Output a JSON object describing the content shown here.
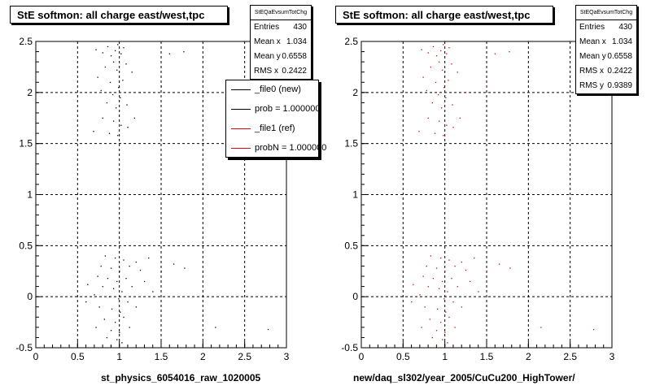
{
  "colors": {
    "black": "#000000",
    "red": "#e00000",
    "grid": "#000000"
  },
  "panels": [
    {
      "title": "StE softmon: all charge east/west,tpc",
      "xlabel": "st_physics_6054016_raw_1020005",
      "stats": {
        "name": "StEQaEvsumTotChg",
        "rows": [
          {
            "label": "Entries",
            "value": "430"
          },
          {
            "label": "Mean x",
            "value": "1.034"
          },
          {
            "label": "Mean y",
            "value": "0.6558"
          },
          {
            "label": "RMS x",
            "value": "0.2422"
          }
        ]
      },
      "legend": [
        {
          "label": "_file0 (new)",
          "color": "#000000"
        },
        {
          "label": "prob = 1.000000",
          "color": "#000000"
        },
        {
          "label": "_file1 (ref)",
          "color": "#e00000"
        },
        {
          "label": "probN = 1.000000",
          "color": "#e00000"
        }
      ]
    },
    {
      "title": "StE softmon: all charge east/west,tpc",
      "xlabel": "new/daq_sl302/year_2005/CuCu200_HighTower/",
      "stats": {
        "name": "StEQaEvsumTotChg",
        "rows": [
          {
            "label": "Entries",
            "value": "430"
          },
          {
            "label": "Mean x",
            "value": "1.034"
          },
          {
            "label": "Mean y",
            "value": "0.6558"
          },
          {
            "label": "RMS x",
            "value": "0.2422"
          },
          {
            "label": "RMS y",
            "value": "0.9389"
          }
        ]
      }
    }
  ],
  "chart_data": [
    {
      "type": "scatter",
      "title": "StE softmon: all charge east/west,tpc",
      "xlabel": "st_physics_6054016_raw_1020005",
      "ylabel": "",
      "xlim": [
        0,
        3
      ],
      "ylim": [
        -0.5,
        2.5
      ],
      "xticks": [
        "0",
        "0.5",
        "1",
        "1.5",
        "2",
        "2.5",
        "3"
      ],
      "yticks": [
        "-0.5",
        "0",
        "0.5",
        "1",
        "1.5",
        "2",
        "2.5"
      ],
      "grid": true,
      "legend_position": "top-right",
      "series": [
        {
          "name": "_file0 (new)",
          "color": "#000000",
          "points": [
            [
              0.72,
              2.42
            ],
            [
              0.8,
              2.39
            ],
            [
              0.86,
              2.45
            ],
            [
              0.9,
              2.36
            ],
            [
              0.95,
              2.41
            ],
            [
              0.98,
              2.47
            ],
            [
              1.02,
              2.38
            ],
            [
              1.05,
              2.44
            ],
            [
              0.93,
              2.3
            ],
            [
              0.83,
              2.25
            ],
            [
              0.97,
              2.22
            ],
            [
              1.08,
              2.28
            ],
            [
              0.74,
              2.15
            ],
            [
              0.89,
              2.1
            ],
            [
              0.99,
              2.05
            ],
            [
              1.04,
              2.12
            ],
            [
              1.15,
              2.2
            ],
            [
              0.78,
              2.02
            ],
            [
              0.92,
              1.98
            ],
            [
              1.01,
              1.95
            ],
            [
              0.85,
              1.9
            ],
            [
              0.96,
              1.85
            ],
            [
              1.09,
              1.88
            ],
            [
              1.25,
              2.0
            ],
            [
              1.18,
              1.75
            ],
            [
              0.8,
              1.75
            ],
            [
              0.93,
              1.72
            ],
            [
              1.02,
              1.68
            ],
            [
              0.69,
              1.62
            ],
            [
              0.88,
              1.6
            ],
            [
              0.98,
              1.58
            ],
            [
              1.1,
              1.66
            ],
            [
              1.5,
              2.06
            ],
            [
              1.6,
              2.38
            ],
            [
              1.77,
              2.4
            ],
            [
              0.83,
              0.4
            ],
            [
              0.95,
              0.38
            ],
            [
              1.05,
              0.36
            ],
            [
              1.2,
              0.34
            ],
            [
              1.35,
              0.38
            ],
            [
              0.78,
              0.3
            ],
            [
              0.9,
              0.28
            ],
            [
              1.0,
              0.25
            ],
            [
              1.12,
              0.3
            ],
            [
              1.25,
              0.26
            ],
            [
              0.74,
              0.2
            ],
            [
              0.86,
              0.18
            ],
            [
              0.97,
              0.15
            ],
            [
              1.08,
              0.18
            ],
            [
              1.3,
              0.15
            ],
            [
              0.8,
              0.1
            ],
            [
              0.93,
              0.08
            ],
            [
              1.03,
              0.05
            ],
            [
              1.15,
              0.1
            ],
            [
              0.7,
              0.02
            ],
            [
              0.88,
              0.0
            ],
            [
              0.99,
              -0.02
            ],
            [
              1.1,
              -0.05
            ],
            [
              1.4,
              0.05
            ],
            [
              0.76,
              -0.1
            ],
            [
              0.91,
              -0.12
            ],
            [
              1.01,
              -0.15
            ],
            [
              1.2,
              -0.1
            ],
            [
              0.82,
              -0.22
            ],
            [
              0.95,
              -0.25
            ],
            [
              1.05,
              -0.2
            ],
            [
              0.72,
              -0.3
            ],
            [
              0.9,
              -0.33
            ],
            [
              1.0,
              -0.35
            ],
            [
              1.12,
              -0.3
            ],
            [
              0.85,
              -0.4
            ],
            [
              0.97,
              -0.42
            ],
            [
              1.03,
              -0.45
            ],
            [
              0.9,
              -0.48
            ],
            [
              1.5,
              0.25
            ],
            [
              1.65,
              0.32
            ],
            [
              1.78,
              0.28
            ],
            [
              2.15,
              -0.3
            ],
            [
              2.78,
              -0.32
            ],
            [
              0.62,
              0.12
            ],
            [
              0.6,
              -0.05
            ]
          ]
        }
      ]
    },
    {
      "type": "scatter",
      "title": "StE softmon: all charge east/west,tpc",
      "xlabel": "new/daq_sl302/year_2005/CuCu200_HighTower/",
      "ylabel": "",
      "xlim": [
        0,
        3
      ],
      "ylim": [
        -0.5,
        2.5
      ],
      "xticks": [
        "0",
        "0.5",
        "1",
        "1.5",
        "2",
        "2.5",
        "3"
      ],
      "yticks": [
        "-0.5",
        "0",
        "0.5",
        "1",
        "1.5",
        "2",
        "2.5"
      ],
      "grid": true,
      "legend_position": "none",
      "series": [
        {
          "name": "",
          "color": "#e00000",
          "points": [
            [
              0.72,
              2.42
            ],
            [
              0.8,
              2.39
            ],
            [
              0.86,
              2.45
            ],
            [
              0.9,
              2.36
            ],
            [
              0.95,
              2.41
            ],
            [
              0.98,
              2.47
            ],
            [
              1.02,
              2.38
            ],
            [
              1.05,
              2.44
            ],
            [
              0.93,
              2.3
            ],
            [
              0.83,
              2.25
            ],
            [
              0.97,
              2.22
            ],
            [
              1.08,
              2.28
            ],
            [
              0.74,
              2.15
            ],
            [
              0.89,
              2.1
            ],
            [
              0.99,
              2.05
            ],
            [
              1.04,
              2.12
            ],
            [
              1.15,
              2.2
            ],
            [
              0.78,
              2.02
            ],
            [
              0.92,
              1.98
            ],
            [
              1.01,
              1.95
            ],
            [
              0.85,
              1.9
            ],
            [
              0.96,
              1.85
            ],
            [
              1.09,
              1.88
            ],
            [
              1.25,
              2.0
            ],
            [
              1.18,
              1.75
            ],
            [
              0.8,
              1.75
            ],
            [
              0.93,
              1.72
            ],
            [
              1.02,
              1.68
            ],
            [
              0.69,
              1.62
            ],
            [
              0.88,
              1.6
            ],
            [
              0.98,
              1.58
            ],
            [
              1.1,
              1.66
            ],
            [
              1.5,
              2.06
            ],
            [
              1.6,
              2.38
            ],
            [
              1.77,
              2.4
            ],
            [
              0.83,
              0.4
            ],
            [
              0.95,
              0.38
            ],
            [
              1.05,
              0.36
            ],
            [
              1.2,
              0.34
            ],
            [
              1.35,
              0.38
            ],
            [
              0.78,
              0.3
            ],
            [
              0.9,
              0.28
            ],
            [
              1.0,
              0.25
            ],
            [
              1.12,
              0.3
            ],
            [
              1.25,
              0.26
            ],
            [
              0.74,
              0.2
            ],
            [
              0.86,
              0.18
            ],
            [
              0.97,
              0.15
            ],
            [
              1.08,
              0.18
            ],
            [
              1.3,
              0.15
            ],
            [
              0.8,
              0.1
            ],
            [
              0.93,
              0.08
            ],
            [
              1.03,
              0.05
            ],
            [
              1.15,
              0.1
            ],
            [
              0.7,
              0.02
            ],
            [
              0.88,
              0.0
            ],
            [
              0.99,
              -0.02
            ],
            [
              1.1,
              -0.05
            ],
            [
              1.4,
              0.05
            ],
            [
              0.76,
              -0.1
            ],
            [
              0.91,
              -0.12
            ],
            [
              1.01,
              -0.15
            ],
            [
              1.2,
              -0.1
            ],
            [
              0.82,
              -0.22
            ],
            [
              0.95,
              -0.25
            ],
            [
              1.05,
              -0.2
            ],
            [
              0.72,
              -0.3
            ],
            [
              0.9,
              -0.33
            ],
            [
              1.0,
              -0.35
            ],
            [
              1.12,
              -0.3
            ],
            [
              0.85,
              -0.4
            ],
            [
              0.97,
              -0.42
            ],
            [
              1.03,
              -0.45
            ],
            [
              0.9,
              -0.48
            ],
            [
              1.5,
              0.25
            ],
            [
              1.65,
              0.32
            ],
            [
              1.78,
              0.28
            ],
            [
              2.15,
              -0.3
            ],
            [
              2.78,
              -0.32
            ],
            [
              0.62,
              0.12
            ],
            [
              0.6,
              -0.05
            ]
          ]
        }
      ]
    }
  ]
}
